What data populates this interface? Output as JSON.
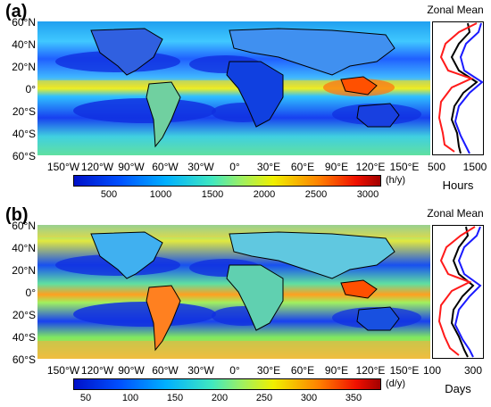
{
  "panels": [
    {
      "label": "(a)",
      "lat_labels": [
        "60°N",
        "40°N",
        "20°N",
        "0°",
        "20°S",
        "40°S",
        "60°S"
      ],
      "lon_labels": [
        "150°W",
        "120°W",
        "90°W",
        "60°W",
        "30°W",
        "0°",
        "30°E",
        "60°E",
        "90°E",
        "120°E",
        "150°E"
      ],
      "colorbar": {
        "ticks": [
          "500",
          "1000",
          "1500",
          "2000",
          "2500",
          "3000"
        ],
        "unit": "(h/y)"
      },
      "zonal": {
        "title": "Zonal Mean",
        "ticks": [
          "500",
          "1500"
        ],
        "axis_label": "Hours"
      }
    },
    {
      "label": "(b)",
      "lat_labels": [
        "60°N",
        "40°N",
        "20°N",
        "0°",
        "20°S",
        "40°S",
        "60°S"
      ],
      "lon_labels": [
        "150°W",
        "120°W",
        "90°W",
        "60°W",
        "30°W",
        "0°",
        "30°E",
        "60°E",
        "90°E",
        "120°E",
        "150°E"
      ],
      "colorbar": {
        "ticks": [
          "50",
          "100",
          "150",
          "200",
          "250",
          "300",
          "350"
        ],
        "unit": "(d/y)"
      },
      "zonal": {
        "title": "Zonal Mean",
        "ticks": [
          "100",
          "300"
        ],
        "axis_label": "Days"
      }
    }
  ],
  "colors": {
    "low": "#0010c8",
    "mid_low": "#00a0ff",
    "mid": "#40e0a0",
    "mid_high": "#f0f000",
    "high": "#ff6000",
    "max": "#a00000",
    "line_black": "#000000",
    "line_red": "#ff1a1a",
    "line_blue": "#1a1aff"
  }
}
